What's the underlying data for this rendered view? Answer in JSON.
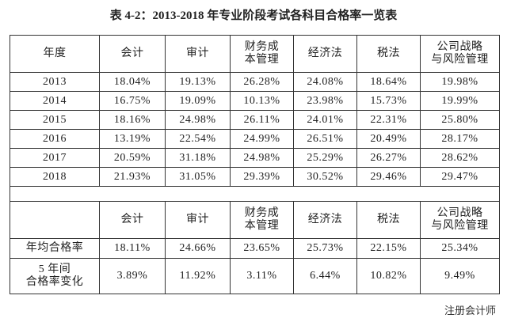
{
  "title": "表 4-2：2013-2018 年专业阶段考试各科目合格率一览表",
  "table": {
    "header": [
      "年度",
      "会计",
      "审计",
      "财务成\n本管理",
      "经济法",
      "税法",
      "公司战略\n与风险管理"
    ],
    "rows": [
      [
        "2013",
        "18.04%",
        "19.13%",
        "26.28%",
        "24.08%",
        "18.64%",
        "19.98%"
      ],
      [
        "2014",
        "16.75%",
        "19.09%",
        "10.13%",
        "23.98%",
        "15.73%",
        "19.99%"
      ],
      [
        "2015",
        "18.16%",
        "24.98%",
        "26.11%",
        "24.01%",
        "22.31%",
        "25.80%"
      ],
      [
        "2016",
        "13.19%",
        "22.54%",
        "24.99%",
        "26.51%",
        "20.49%",
        "28.17%"
      ],
      [
        "2017",
        "20.59%",
        "31.18%",
        "24.98%",
        "25.29%",
        "26.27%",
        "28.62%"
      ],
      [
        "2018",
        "21.93%",
        "31.05%",
        "29.39%",
        "30.52%",
        "29.46%",
        "29.47%"
      ]
    ]
  },
  "summary": {
    "header": [
      "会计",
      "审计",
      "财务成\n本管理",
      "经济法",
      "税法",
      "公司战略\n与风险管理"
    ],
    "rows": [
      [
        "年均合格率",
        "18.11%",
        "24.66%",
        "23.65%",
        "25.73%",
        "22.15%",
        "25.34%"
      ],
      [
        "5 年间\n合格率变化",
        "3.89%",
        "11.92%",
        "3.11%",
        "6.44%",
        "10.82%",
        "9.49%"
      ]
    ]
  },
  "watermark": "注册会计师"
}
